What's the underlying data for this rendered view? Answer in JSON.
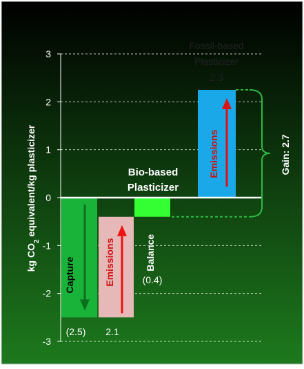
{
  "chart_data": {
    "type": "bar",
    "ylabel_pre": "kg CO",
    "ylabel_sub": "2",
    "ylabel_post": " equivalent/kg plasticizer",
    "ylim": [
      -3,
      3
    ],
    "yticks": [
      "3",
      "2",
      "1",
      "0",
      "-1",
      "-2",
      "-3"
    ],
    "ytick_values": [
      3,
      2,
      1,
      0,
      -1,
      -2,
      -3
    ],
    "grid": "horizontal dashed",
    "bars": [
      {
        "label": "Capture",
        "value": -2.5,
        "value_label": "(2.5)",
        "color": "#19b33a",
        "arrow": "down",
        "arrow_color": "#0d6e1c"
      },
      {
        "label": "Emissions",
        "value": 2.1,
        "from": -2.5,
        "value_label": "2.1",
        "color": "#e6b9b8",
        "arrow": "up",
        "arrow_color": "#ee1111"
      },
      {
        "label": "Balance",
        "value": -0.4,
        "value_label": "(0.4)",
        "color": "#33ff33"
      },
      {
        "label": "Emissions",
        "value": 2.25,
        "value_label": "2.3",
        "color": "#1aa8e8",
        "arrow": "up",
        "arrow_color": "#dd1111"
      }
    ],
    "group_labels": {
      "bio_line1": "Bio-based",
      "bio_line2": "Plasticizer",
      "fossil_line1": "Fossil-based",
      "fossil_line2": "Plasticizer",
      "fossil_value": "2.3"
    },
    "annotation": {
      "text": "Gain: 2.7",
      "from": -0.4,
      "to": 2.25
    },
    "colors": {
      "bg_top": "#000000",
      "bg_bottom": "#1d7a1d",
      "text": "#ffffff",
      "axis": "#ffffff",
      "bracket": "#2dbb44"
    }
  }
}
